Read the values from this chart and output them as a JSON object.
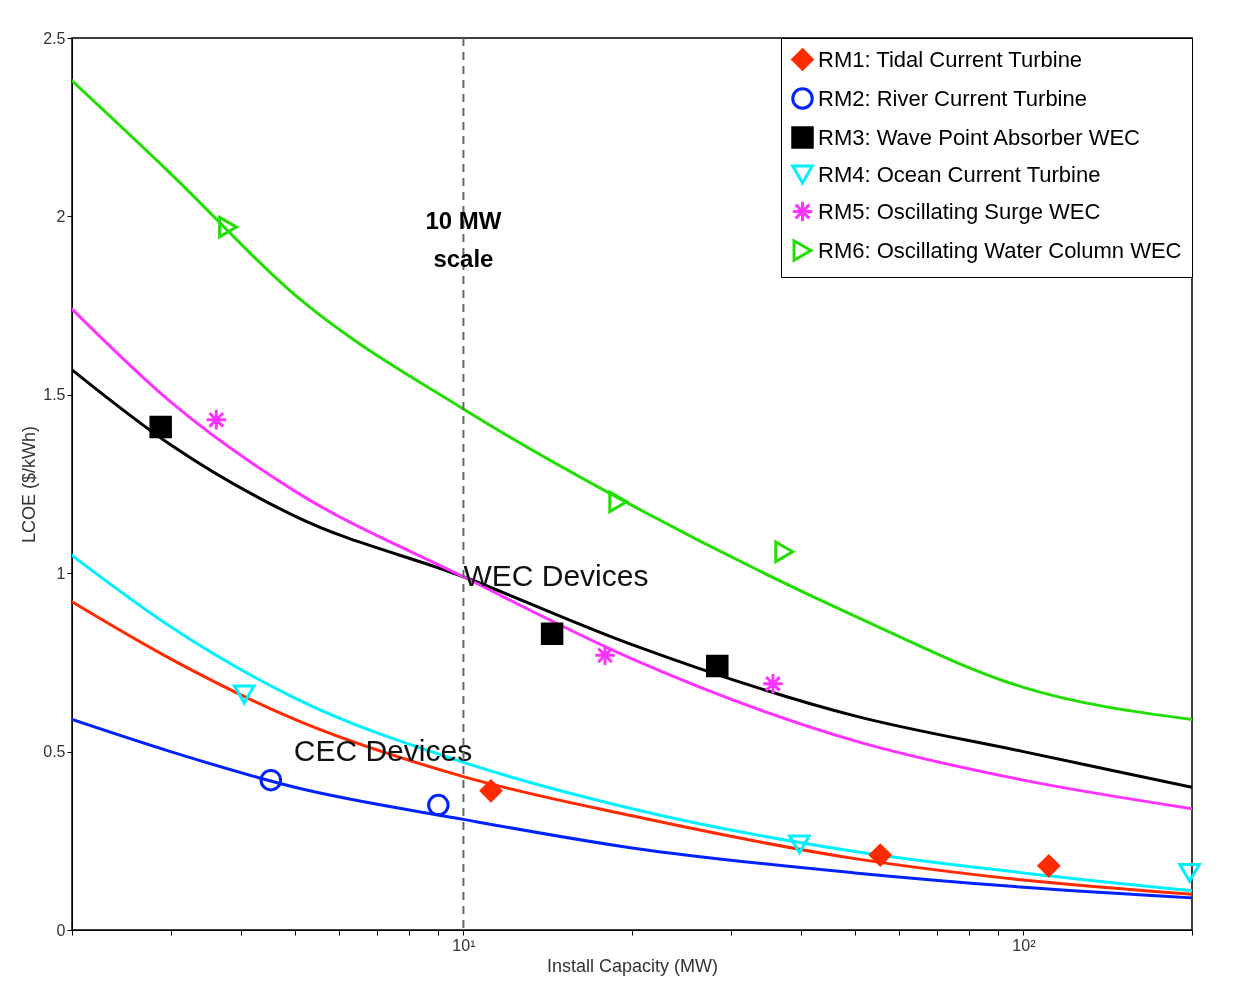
{
  "chart_data": {
    "type": "line",
    "xlabel": "Install Capacity (MW)",
    "ylabel": "LCOE ($/kWh)",
    "log": "x",
    "grid": false,
    "legend": "top right",
    "xlim": [
      2,
      200
    ],
    "ylim": [
      0,
      2.5
    ],
    "xticks": [
      {
        "value": 2,
        "label": null
      },
      {
        "value": 3,
        "label": null
      },
      {
        "value": 4,
        "label": null
      },
      {
        "value": 5,
        "label": null
      },
      {
        "value": 6,
        "label": null
      },
      {
        "value": 7,
        "label": null
      },
      {
        "value": 8,
        "label": null
      },
      {
        "value": 9,
        "label": null
      },
      {
        "value": 10,
        "label": "10¹"
      },
      {
        "value": 20,
        "label": null
      },
      {
        "value": 30,
        "label": null
      },
      {
        "value": 40,
        "label": null
      },
      {
        "value": 50,
        "label": null
      },
      {
        "value": 60,
        "label": null
      },
      {
        "value": 70,
        "label": null
      },
      {
        "value": 80,
        "label": null
      },
      {
        "value": 90,
        "label": null
      },
      {
        "value": 100,
        "label": "10²"
      },
      {
        "value": 200,
        "label": null
      }
    ],
    "yticks": [
      0,
      0.5,
      1,
      1.5,
      2,
      2.5
    ],
    "x": [
      2,
      3,
      5,
      10,
      20,
      50,
      100,
      200
    ],
    "series": [
      {
        "name": "RM1: Tidal Current Turbine",
        "type": "scatter",
        "marker": "diamond",
        "color": "#ff2a00",
        "x": [
          11.2,
          55.5,
          111
        ],
        "values": [
          0.39,
          0.21,
          0.18
        ]
      },
      {
        "name": "RM2: River Current Turbine",
        "type": "scatter",
        "marker": "circle",
        "color": "#0022ff",
        "x": [
          4.53,
          9.02
        ],
        "values": [
          0.42,
          0.35
        ]
      },
      {
        "name": "RM3: Wave Point Absorber WEC",
        "type": "scatter",
        "marker": "square",
        "color": "#000000",
        "x": [
          2.88,
          14.4,
          28.4
        ],
        "values": [
          1.41,
          0.83,
          0.74
        ]
      },
      {
        "name": "RM4: Ocean Current Turbine",
        "type": "scatter",
        "marker": "triangle-down",
        "color": "#00f0ff",
        "x": [
          4.06,
          39.8,
          198
        ],
        "values": [
          0.66,
          0.24,
          0.16
        ]
      },
      {
        "name": "RM5: Oscillating Surge WEC",
        "type": "scatter",
        "marker": "cross",
        "color": "#ff33ff",
        "x": [
          3.62,
          17.9,
          35.7
        ],
        "values": [
          1.43,
          0.77,
          0.69
        ]
      },
      {
        "name": "RM6: Oscillating Water Column WEC",
        "type": "scatter",
        "marker": "triangle-right",
        "color": "#22dd00",
        "x": [
          3.8,
          18.9,
          37.4
        ],
        "values": [
          1.97,
          1.2,
          1.06
        ]
      },
      {
        "type": "line",
        "color": "#22dd00",
        "values": [
          2.38,
          2.12,
          1.78,
          1.46,
          1.19,
          0.88,
          0.68,
          0.59
        ]
      },
      {
        "type": "line",
        "color": "#000000",
        "values": [
          1.57,
          1.36,
          1.16,
          0.99,
          0.8,
          0.6,
          0.5,
          0.4
        ]
      },
      {
        "type": "line",
        "color": "#ff33ff",
        "values": [
          1.74,
          1.48,
          1.23,
          0.99,
          0.76,
          0.53,
          0.42,
          0.34
        ]
      },
      {
        "type": "line",
        "color": "#00f0ff",
        "values": [
          1.05,
          0.85,
          0.65,
          0.47,
          0.34,
          0.22,
          0.16,
          0.11
        ]
      },
      {
        "type": "line",
        "color": "#ff2a00",
        "values": [
          0.92,
          0.76,
          0.59,
          0.43,
          0.32,
          0.2,
          0.14,
          0.1
        ]
      },
      {
        "type": "line",
        "color": "#0022ff",
        "values": [
          0.59,
          0.5,
          0.4,
          0.31,
          0.23,
          0.16,
          0.12,
          0.09
        ]
      }
    ],
    "ref_lines": [
      {
        "axis": "x",
        "value": 10,
        "label": "10 MW scale",
        "color": "#666666",
        "line_style": "dashed"
      }
    ],
    "annotations": [
      {
        "text": "WEC Devices",
        "x": 10,
        "y": 0.99
      },
      "CEC Devices"
    ]
  }
}
